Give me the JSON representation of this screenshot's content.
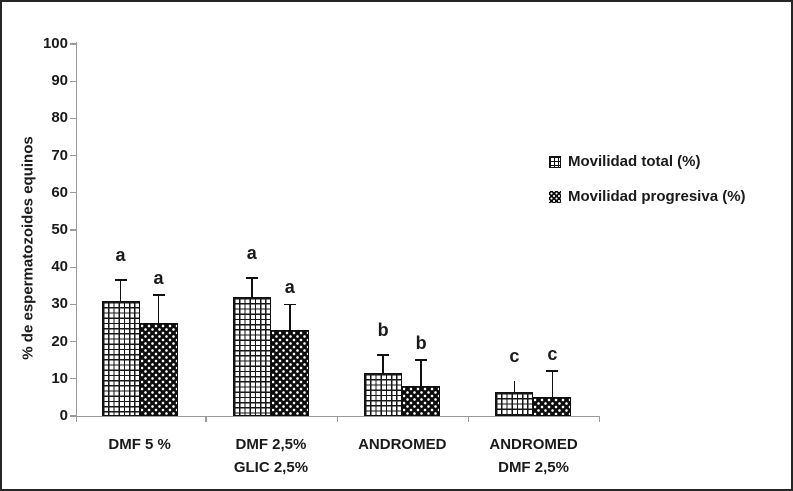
{
  "figure": {
    "background": "#ffffff",
    "border_color": "#262626",
    "axis_color": "#9a9a9a",
    "text_color": "#1a1a1a"
  },
  "chart_data": {
    "type": "bar",
    "title": "",
    "xlabel": "",
    "ylabel": "% de espermatozoides equinos",
    "ylim": [
      0,
      100
    ],
    "ytick_step": 10,
    "yticks": [
      0,
      10,
      20,
      30,
      40,
      50,
      60,
      70,
      80,
      90,
      100
    ],
    "grid": false,
    "legend_position": "center-right",
    "error_bars": true,
    "categories": [
      {
        "lines": [
          "DMF 5 %"
        ]
      },
      {
        "lines": [
          "DMF 2,5%",
          "GLIC 2,5%"
        ]
      },
      {
        "lines": [
          "ANDROMED"
        ]
      },
      {
        "lines": [
          "ANDROMED",
          "DMF 2,5%"
        ]
      }
    ],
    "series": [
      {
        "name": "Movilidad total (%)",
        "pattern": "grid",
        "fill": "#ffffff",
        "pattern_color": "#161616",
        "values": [
          31,
          32,
          11.5,
          6.5
        ],
        "errors": [
          5.5,
          5,
          5,
          3
        ],
        "error_caps": [
          true,
          true,
          true,
          false
        ],
        "letters": [
          "a",
          "a",
          "b",
          "c"
        ]
      },
      {
        "name": "Movilidad progresiva (%)",
        "pattern": "dots",
        "fill": "#0d0d0d",
        "pattern_color": "#ffffff",
        "values": [
          25,
          23,
          8,
          5
        ],
        "errors": [
          7.5,
          7,
          7,
          7
        ],
        "error_caps": [
          true,
          true,
          true,
          true
        ],
        "letters": [
          "a",
          "a",
          "b",
          "c"
        ]
      }
    ]
  }
}
